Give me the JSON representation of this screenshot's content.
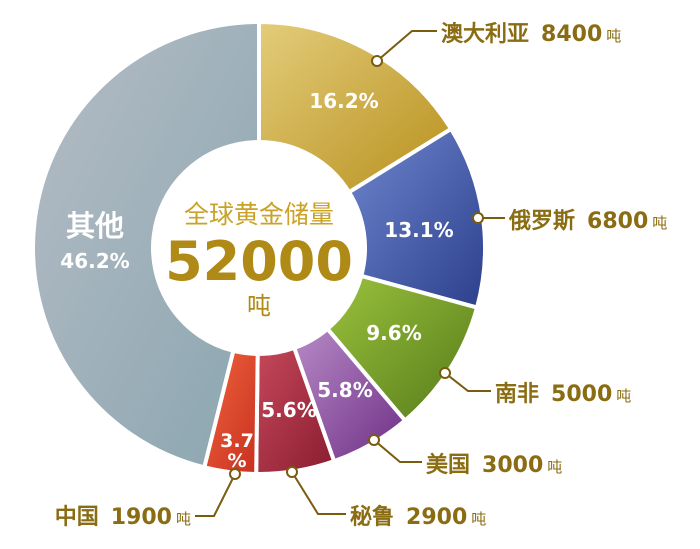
{
  "center": {
    "title": "全球黄金储量",
    "value": "52000",
    "unit": "吨"
  },
  "colors": {
    "label_text": "#8a6c12",
    "leader_line": "#7a5c0f",
    "center_title": "#c9a227",
    "center_value": "#b08a16"
  },
  "chart_data": {
    "type": "pie",
    "variant": "donut",
    "title": "全球黄金储量",
    "total": 52000,
    "unit": "吨",
    "slices": [
      {
        "name": "澳大利亚",
        "value": 8400,
        "value_label": "8400",
        "percent": 16.2,
        "percent_label": "16.2%",
        "color": "#c9a83a"
      },
      {
        "name": "俄罗斯",
        "value": 6800,
        "value_label": "6800",
        "percent": 13.1,
        "percent_label": "13.1%",
        "color": "#3f5aa8"
      },
      {
        "name": "南非",
        "value": 5000,
        "value_label": "5000",
        "percent": 9.6,
        "percent_label": "9.6%",
        "color": "#6f9a2a"
      },
      {
        "name": "美国",
        "value": 3000,
        "value_label": "3000",
        "percent": 5.8,
        "percent_label": "5.8%",
        "color": "#8c4c9c"
      },
      {
        "name": "秘鲁",
        "value": 2900,
        "value_label": "2900",
        "percent": 5.6,
        "percent_label": "5.6%",
        "color": "#a8283d"
      },
      {
        "name": "中国",
        "value": 1900,
        "value_label": "1900",
        "percent": 3.7,
        "percent_label": "3.7%",
        "color": "#e0462a"
      },
      {
        "name": "其他",
        "value": null,
        "value_label": "",
        "percent": 46.2,
        "percent_label": "46.2%",
        "color": "#9aa9b4"
      }
    ]
  }
}
